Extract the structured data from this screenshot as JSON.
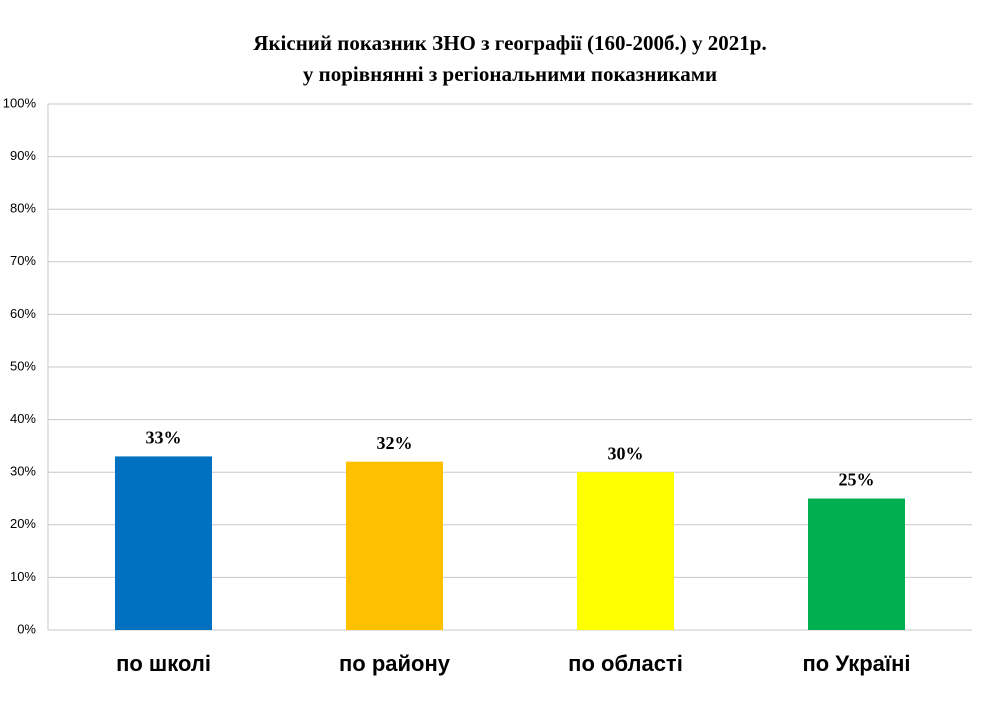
{
  "chart_data": {
    "type": "bar",
    "title": "Якісний показник ЗНО з географії (160-200б.) у 2021р.",
    "subtitle": "у порівнянні з регіональними показниками",
    "categories": [
      "по школі",
      "по району",
      "по області",
      "по Україні"
    ],
    "values": [
      33,
      32,
      30,
      25
    ],
    "value_labels": [
      "33%",
      "32%",
      "30%",
      "25%"
    ],
    "colors": [
      "#0070c0",
      "#ffc000",
      "#ffff00",
      "#00b050"
    ],
    "ylim": [
      0,
      100
    ],
    "yticks": [
      {
        "value": 0,
        "label": "0%"
      },
      {
        "value": 10,
        "label": "10%"
      },
      {
        "value": 20,
        "label": "20%"
      },
      {
        "value": 30,
        "label": "30%"
      },
      {
        "value": 40,
        "label": "40%"
      },
      {
        "value": 50,
        "label": "50%"
      },
      {
        "value": 60,
        "label": "60%"
      },
      {
        "value": 70,
        "label": "70%"
      },
      {
        "value": 80,
        "label": "80%"
      },
      {
        "value": 90,
        "label": "90%"
      },
      {
        "value": 100,
        "label": "100%"
      }
    ],
    "grid": true
  }
}
